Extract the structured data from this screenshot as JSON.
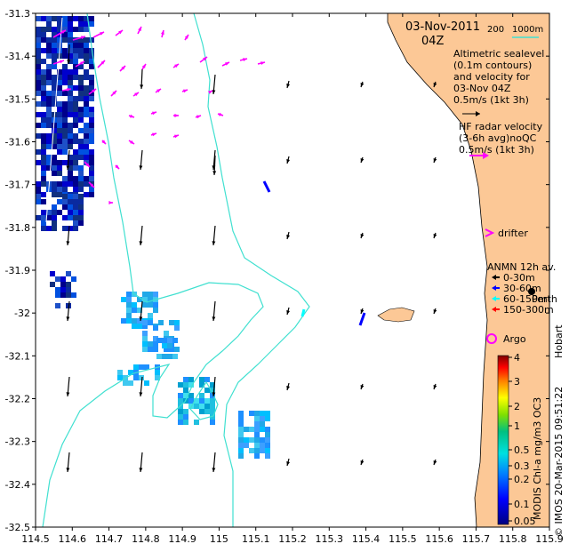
{
  "header": {
    "date": "03-Nov-2011",
    "time": "04Z"
  },
  "scale_bar": {
    "left": "200",
    "right": "1000m",
    "color": "#40e0d0"
  },
  "legend": {
    "altimetry_lines": [
      "Altimetric sealevel",
      "(0.1m contours)",
      "and velocity for",
      "03-Nov 04Z",
      "0.5m/s (1kt 3h)"
    ],
    "hf_lines": [
      "HF radar velocity",
      "(3-6h avg)noQC",
      "0.5m/s (1kt 3h)"
    ],
    "drifter": "drifter",
    "anmn_title": "ANMN 12h av.",
    "anmn_items": [
      {
        "label": "0-30m",
        "color": "#000000"
      },
      {
        "label": "30-60m",
        "color": "#0000ff"
      },
      {
        "label": "60-150m",
        "color": "#00ffff"
      },
      {
        "label": "150-300m",
        "color": "#ff0000"
      }
    ],
    "argo": "Argo",
    "perth": "Perth",
    "hobart_credit": "Hobart"
  },
  "colorbar": {
    "title": "MODIS Chl-a mg/m3 OC3",
    "ticks": [
      "4",
      "3",
      "2",
      "1",
      "0.5",
      "0.3",
      "0.2",
      "0.1",
      "0.05"
    ]
  },
  "credit": "© IMOS 20-Mar-2015 09:51:22",
  "colors": {
    "land": "#fcc896",
    "contour": "#40e0d0",
    "hf": "#ff00ff",
    "velocity": "#000000"
  },
  "chart_data": {
    "type": "map",
    "xlim": [
      114.5,
      115.9
    ],
    "ylim": [
      -32.5,
      -31.3
    ],
    "x_ticks": [
      "114.5",
      "114.6",
      "114.7",
      "114.8",
      "114.9",
      "115",
      "115.1",
      "115.2",
      "115.3",
      "115.4",
      "115.5",
      "115.6",
      "115.7",
      "115.8",
      "115.9"
    ],
    "y_ticks": [
      "-31.3",
      "-31.4",
      "-31.5",
      "-31.6",
      "-31.7",
      "-31.8",
      "-31.9",
      "-32",
      "-32.1",
      "-32.2",
      "-32.3",
      "-32.4",
      "-32.5"
    ]
  }
}
